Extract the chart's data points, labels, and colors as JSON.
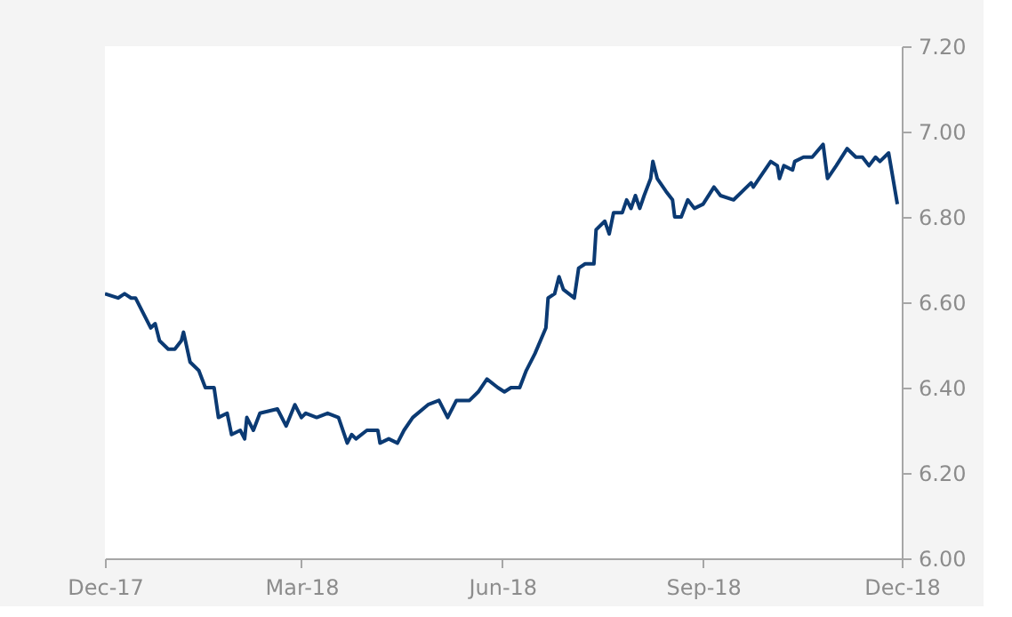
{
  "chart_data": {
    "type": "line",
    "x": [
      "2017-12-01",
      "2017-12-07",
      "2017-12-10",
      "2017-12-13",
      "2017-12-15",
      "2017-12-18",
      "2017-12-22",
      "2017-12-24",
      "2017-12-26",
      "2017-12-30",
      "2018-01-02",
      "2018-01-05",
      "2018-01-06",
      "2018-01-09",
      "2018-01-13",
      "2018-01-16",
      "2018-01-20",
      "2018-01-22",
      "2018-01-26",
      "2018-01-28",
      "2018-02-01",
      "2018-02-03",
      "2018-02-04",
      "2018-02-07",
      "2018-02-10",
      "2018-02-18",
      "2018-02-22",
      "2018-02-26",
      "2018-03-01",
      "2018-03-03",
      "2018-03-08",
      "2018-03-13",
      "2018-03-18",
      "2018-03-22",
      "2018-03-24",
      "2018-03-26",
      "2018-03-31",
      "2018-04-05",
      "2018-04-06",
      "2018-04-10",
      "2018-04-14",
      "2018-04-17",
      "2018-04-21",
      "2018-04-28",
      "2018-05-03",
      "2018-05-07",
      "2018-05-11",
      "2018-05-17",
      "2018-05-21",
      "2018-05-25",
      "2018-05-30",
      "2018-06-02",
      "2018-06-05",
      "2018-06-09",
      "2018-06-12",
      "2018-06-16",
      "2018-06-21",
      "2018-06-22",
      "2018-06-25",
      "2018-06-27",
      "2018-06-29",
      "2018-07-04",
      "2018-07-06",
      "2018-07-09",
      "2018-07-13",
      "2018-07-14",
      "2018-07-18",
      "2018-07-20",
      "2018-07-22",
      "2018-07-26",
      "2018-07-28",
      "2018-07-30",
      "2018-08-01",
      "2018-08-03",
      "2018-08-05",
      "2018-08-08",
      "2018-08-09",
      "2018-08-11",
      "2018-08-15",
      "2018-08-18",
      "2018-08-19",
      "2018-08-22",
      "2018-08-25",
      "2018-08-28",
      "2018-09-01",
      "2018-09-06",
      "2018-09-09",
      "2018-09-15",
      "2018-09-23",
      "2018-09-24",
      "2018-10-02",
      "2018-10-05",
      "2018-10-06",
      "2018-10-08",
      "2018-10-12",
      "2018-10-13",
      "2018-10-17",
      "2018-10-21",
      "2018-10-26",
      "2018-10-28",
      "2018-11-01",
      "2018-11-06",
      "2018-11-10",
      "2018-11-13",
      "2018-11-16",
      "2018-11-19",
      "2018-11-21",
      "2018-11-25",
      "2018-11-26",
      "2018-11-29"
    ],
    "series": [
      {
        "color": "#0b3a73",
        "values": [
          6.62,
          6.61,
          6.62,
          6.61,
          6.61,
          6.58,
          6.54,
          6.55,
          6.51,
          6.49,
          6.49,
          6.51,
          6.53,
          6.46,
          6.44,
          6.4,
          6.4,
          6.33,
          6.34,
          6.29,
          6.3,
          6.28,
          6.33,
          6.3,
          6.34,
          6.35,
          6.31,
          6.36,
          6.33,
          6.34,
          6.33,
          6.34,
          6.33,
          6.27,
          6.29,
          6.28,
          6.3,
          6.3,
          6.27,
          6.28,
          6.27,
          6.3,
          6.33,
          6.36,
          6.37,
          6.33,
          6.37,
          6.37,
          6.39,
          6.42,
          6.4,
          6.39,
          6.4,
          6.4,
          6.44,
          6.48,
          6.54,
          6.61,
          6.62,
          6.66,
          6.63,
          6.61,
          6.68,
          6.69,
          6.69,
          6.77,
          6.79,
          6.76,
          6.81,
          6.81,
          6.84,
          6.82,
          6.85,
          6.82,
          6.85,
          6.89,
          6.93,
          6.89,
          6.86,
          6.84,
          6.8,
          6.8,
          6.84,
          6.82,
          6.83,
          6.87,
          6.85,
          6.84,
          6.88,
          6.87,
          6.93,
          6.92,
          6.89,
          6.92,
          6.91,
          6.93,
          6.94,
          6.94,
          6.97,
          6.89,
          6.92,
          6.96,
          6.94,
          6.94,
          6.92,
          6.94,
          6.93,
          6.95,
          6.92,
          6.83
        ]
      }
    ],
    "xlim": [
      "2017-12-01",
      "2018-12-01"
    ],
    "xticks": [
      {
        "value": "2017-12-01",
        "label": "Dec-17"
      },
      {
        "value": "2018-03-01",
        "label": "Mar-18"
      },
      {
        "value": "2018-06-01",
        "label": "Jun-18"
      },
      {
        "value": "2018-09-01",
        "label": "Sep-18"
      },
      {
        "value": "2018-12-01",
        "label": "Dec-18"
      }
    ],
    "ylim": [
      6.0,
      7.2
    ],
    "yticks": [
      {
        "value": 6.0,
        "label": "6.00"
      },
      {
        "value": 6.2,
        "label": "6.20"
      },
      {
        "value": 6.4,
        "label": "6.40"
      },
      {
        "value": 6.6,
        "label": "6.60"
      },
      {
        "value": 6.8,
        "label": "6.80"
      },
      {
        "value": 7.0,
        "label": "7.00"
      },
      {
        "value": 7.2,
        "label": "7.20"
      }
    ],
    "grid": false,
    "legend": false,
    "marker": "none",
    "line_style": "solid"
  }
}
